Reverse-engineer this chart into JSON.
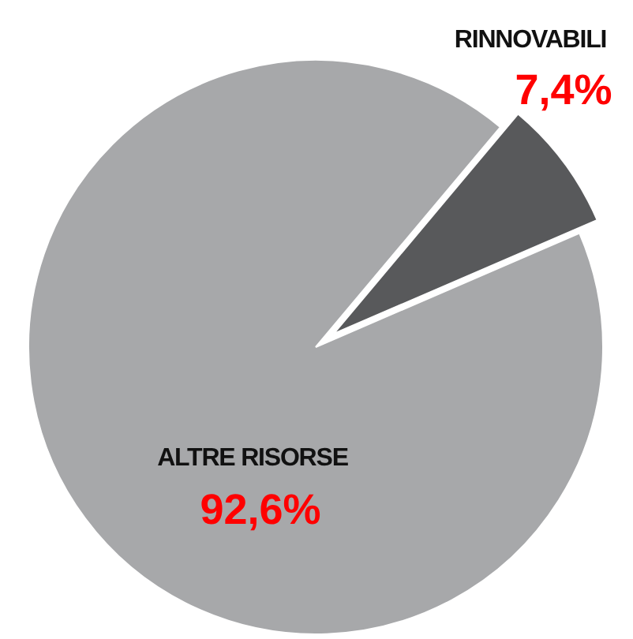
{
  "chart_data": {
    "type": "pie",
    "categories": [
      "RINNOVABILI",
      "ALTRE RISORSE"
    ],
    "values": [
      7.4,
      92.6
    ],
    "colors": [
      "#58595b",
      "#a7a8aa"
    ],
    "value_labels": [
      "7,4%",
      "92,6%"
    ]
  }
}
